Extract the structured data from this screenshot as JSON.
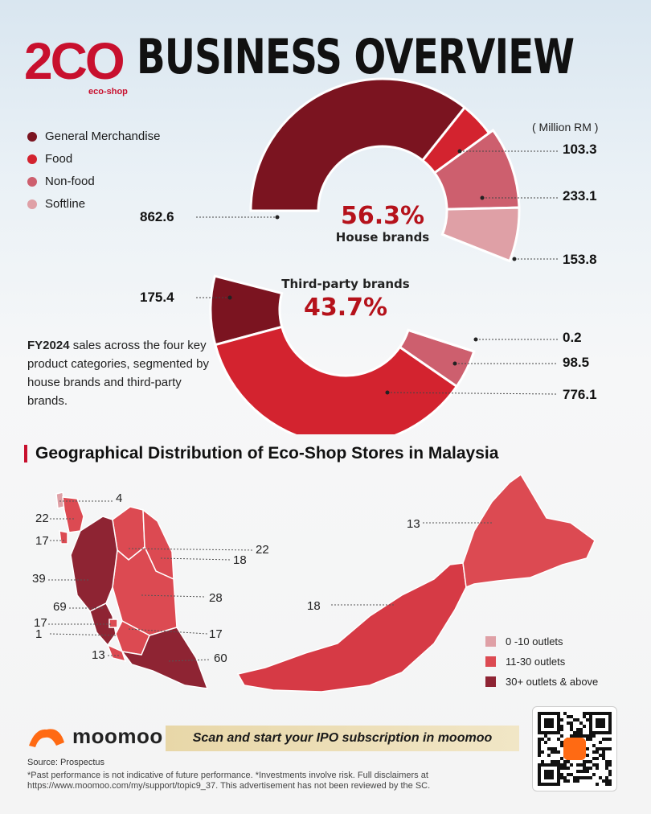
{
  "header": {
    "logo_mark": "2CO",
    "logo_sub": "eco-shop",
    "title": "BUSINESS OVERVIEW"
  },
  "legend": [
    {
      "label": "General Merchandise",
      "color": "#7b1420"
    },
    {
      "label": "Food",
      "color": "#d3232f"
    },
    {
      "label": "Non-food",
      "color": "#cd5f6e"
    },
    {
      "label": "Softline",
      "color": "#dfa0a6"
    }
  ],
  "unit": "( Million RM )",
  "chart_data": {
    "type": "pie",
    "style": "split-donut",
    "unit": "Million RM",
    "categories": [
      "General Merchandise",
      "Food",
      "Non-food",
      "Softline"
    ],
    "series": [
      {
        "name": "House brands",
        "share": "56.3%",
        "values": [
          862.6,
          103.3,
          233.1,
          153.8
        ]
      },
      {
        "name": "Third-party brands",
        "share": "43.7%",
        "values": [
          175.4,
          776.1,
          98.5,
          0.2
        ]
      }
    ]
  },
  "center": {
    "house_pct": "56.3%",
    "house_label": "House brands",
    "third_label": "Third-party brands",
    "third_pct": "43.7%"
  },
  "labels": {
    "house_gm": "862.6",
    "house_food": "103.3",
    "house_nonfood": "233.1",
    "house_softline": "153.8",
    "third_gm": "175.4",
    "third_softline": "0.2",
    "third_nonfood": "98.5",
    "third_food": "776.1"
  },
  "description": {
    "bold": "FY2024",
    "rest": " sales across the four key product categories, segmented by house brands and third-party brands."
  },
  "geo": {
    "title": "Geographical Distribution of Eco-Shop Stores in Malaysia",
    "numbers": {
      "perlis": "4",
      "kedah": "22",
      "penang": "17",
      "perak": "39",
      "selangor": "69",
      "kl": "17",
      "putrajaya": "1",
      "melaka": "13",
      "kelantan": "22",
      "terengganu": "18",
      "pahang": "28",
      "nsembilan": "17",
      "johor": "60",
      "sabah": "13",
      "sarawak": "18"
    },
    "legend": [
      {
        "label": "0 -10 outlets",
        "color": "#dfa0a6"
      },
      {
        "label": "11-30 outlets",
        "color": "#dc4a52"
      },
      {
        "label": "30+ outlets & above",
        "color": "#8e2433"
      }
    ]
  },
  "footer": {
    "brand": "moomoo",
    "cta": "Scan and start your IPO subscription in moomoo",
    "source": "Source: Prospectus",
    "disclaimer": "*Past performance is not indicative of future performance. *Investments involve risk. Full disclaimers at https://www.moomoo.com/my/support/topic9_37. This advertisement has not been reviewed by the SC."
  }
}
